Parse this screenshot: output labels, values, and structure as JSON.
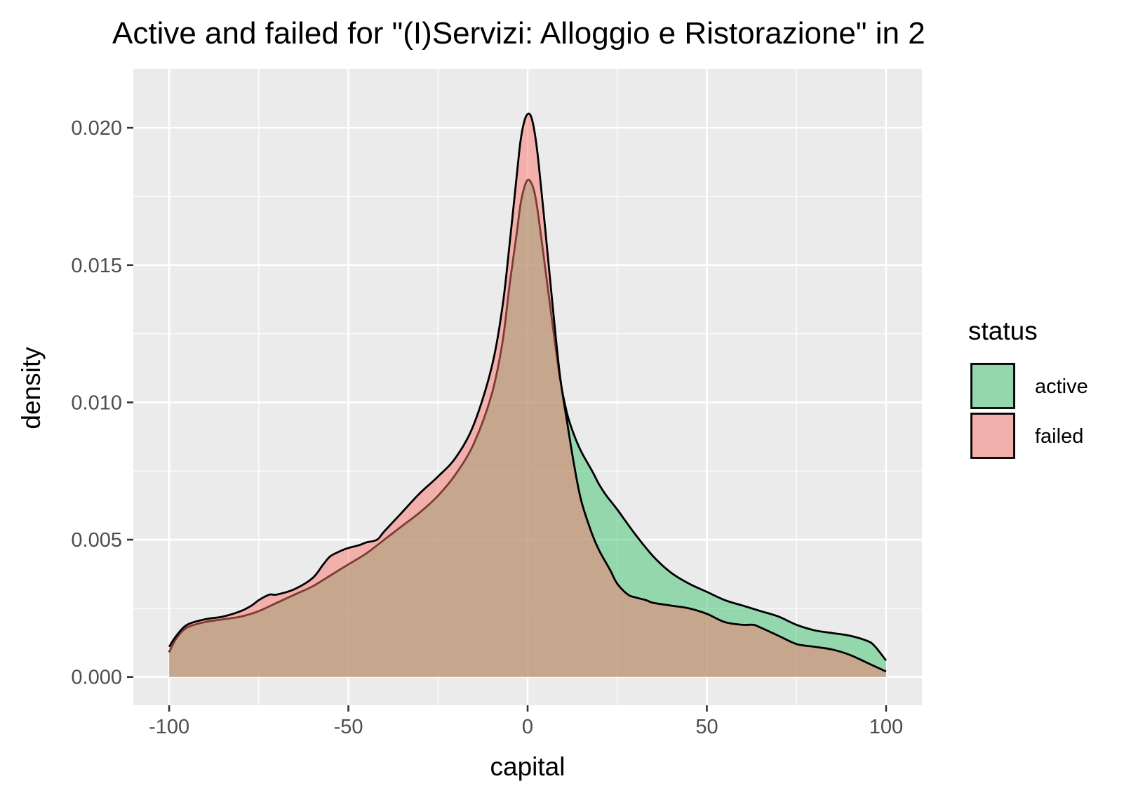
{
  "chart_data": {
    "type": "area",
    "subtype": "density",
    "title": "Active and failed for \"(I)Servizi: Alloggio e Ristorazione\" in 2",
    "xlabel": "capital",
    "ylabel": "density",
    "xlim": [
      -100,
      100
    ],
    "ylim": [
      0,
      0.0205
    ],
    "x_ticks": [
      -100,
      -50,
      0,
      50,
      100
    ],
    "x_tick_labels": [
      "-100",
      "-50",
      "0",
      "50",
      "100"
    ],
    "y_ticks": [
      0,
      0.005,
      0.01,
      0.015,
      0.02
    ],
    "y_tick_labels": [
      "0.000",
      "0.005",
      "0.010",
      "0.015",
      "0.020"
    ],
    "grid": true,
    "background": "#ebebeb",
    "legend": {
      "title": "status",
      "position": "right"
    },
    "series": [
      {
        "name": "active",
        "color": "#3ec46d",
        "x": [
          -100,
          -98,
          -95,
          -90,
          -85,
          -80,
          -75,
          -70,
          -65,
          -60,
          -55,
          -50,
          -45,
          -40,
          -35,
          -30,
          -25,
          -20,
          -15,
          -10,
          -7,
          -5,
          -3,
          -2,
          -1,
          0,
          1,
          2,
          3,
          5,
          7,
          9,
          11,
          13,
          15,
          18,
          20,
          22,
          25,
          30,
          35,
          40,
          45,
          50,
          55,
          60,
          65,
          70,
          75,
          80,
          85,
          90,
          95,
          97,
          100
        ],
        "y": [
          0.0009,
          0.0014,
          0.0018,
          0.002,
          0.0021,
          0.0022,
          0.0024,
          0.0027,
          0.003,
          0.0033,
          0.0037,
          0.0041,
          0.0045,
          0.005,
          0.0055,
          0.006,
          0.0066,
          0.0074,
          0.0085,
          0.0103,
          0.0122,
          0.0143,
          0.0162,
          0.0172,
          0.0178,
          0.0181,
          0.018,
          0.0176,
          0.0168,
          0.0148,
          0.0128,
          0.0109,
          0.0096,
          0.0088,
          0.0082,
          0.0075,
          0.007,
          0.0066,
          0.0061,
          0.0052,
          0.0044,
          0.0038,
          0.0034,
          0.0031,
          0.0028,
          0.0026,
          0.0024,
          0.0022,
          0.0019,
          0.0017,
          0.0016,
          0.0015,
          0.0013,
          0.0011,
          0.0006
        ]
      },
      {
        "name": "failed",
        "color": "#f8766d",
        "x": [
          -100,
          -98,
          -95,
          -90,
          -85,
          -80,
          -77,
          -75,
          -72,
          -70,
          -65,
          -60,
          -57,
          -55,
          -52,
          -50,
          -47,
          -45,
          -42,
          -40,
          -35,
          -30,
          -25,
          -20,
          -15,
          -10,
          -7,
          -5,
          -3,
          -2,
          -1,
          0,
          1,
          2,
          3,
          5,
          7,
          9,
          11,
          13,
          15,
          18,
          20,
          23,
          25,
          28,
          30,
          33,
          35,
          40,
          45,
          50,
          55,
          60,
          63,
          65,
          70,
          75,
          80,
          85,
          90,
          95,
          100
        ],
        "y": [
          0.0011,
          0.0015,
          0.0019,
          0.0021,
          0.0022,
          0.0024,
          0.0026,
          0.0028,
          0.003,
          0.003,
          0.0032,
          0.0036,
          0.0041,
          0.0044,
          0.0046,
          0.0047,
          0.0048,
          0.0049,
          0.005,
          0.0053,
          0.006,
          0.0067,
          0.0073,
          0.008,
          0.0092,
          0.0113,
          0.0135,
          0.0158,
          0.0183,
          0.0195,
          0.0202,
          0.0205,
          0.0204,
          0.0198,
          0.0188,
          0.0162,
          0.0135,
          0.011,
          0.0093,
          0.0077,
          0.0064,
          0.0052,
          0.0046,
          0.0039,
          0.0034,
          0.003,
          0.0029,
          0.0028,
          0.0027,
          0.0026,
          0.0025,
          0.0023,
          0.002,
          0.0019,
          0.0019,
          0.0018,
          0.0015,
          0.0012,
          0.0011,
          0.001,
          0.0008,
          0.0005,
          0.0002
        ]
      }
    ]
  }
}
